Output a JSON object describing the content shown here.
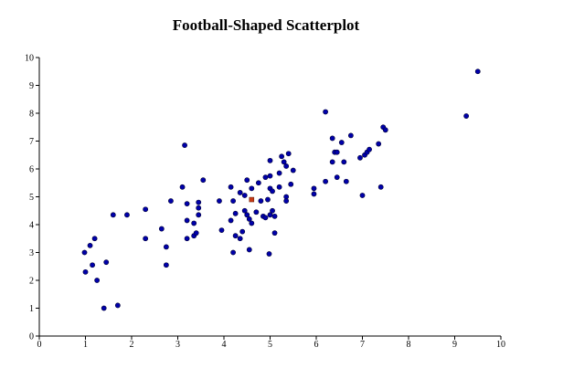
{
  "chart_data": {
    "type": "scatter",
    "title": "Football-Shaped Scatterplot",
    "xlabel": "",
    "ylabel": "",
    "xlim": [
      0,
      10
    ],
    "ylim": [
      0,
      10
    ],
    "xticks": [
      "0",
      "1",
      "2",
      "3",
      "4",
      "5",
      "6",
      "7",
      "8",
      "9",
      "10"
    ],
    "yticks": [
      "0",
      "1",
      "2",
      "3",
      "4",
      "5",
      "6",
      "7",
      "8",
      "9",
      "10"
    ],
    "grid": false,
    "point_color": "#0000aa",
    "point_edge_color": "#000033",
    "highlight_color": "#c83a14",
    "highlight_point": {
      "x": 4.6,
      "y": 4.9
    },
    "points": [
      {
        "x": 0.98,
        "y": 3.0
      },
      {
        "x": 1.1,
        "y": 3.25
      },
      {
        "x": 1.2,
        "y": 3.5
      },
      {
        "x": 1.0,
        "y": 2.3
      },
      {
        "x": 1.15,
        "y": 2.55
      },
      {
        "x": 1.45,
        "y": 2.65
      },
      {
        "x": 1.25,
        "y": 2.0
      },
      {
        "x": 1.4,
        "y": 1.0
      },
      {
        "x": 1.7,
        "y": 1.1
      },
      {
        "x": 1.6,
        "y": 4.35
      },
      {
        "x": 1.9,
        "y": 4.35
      },
      {
        "x": 2.3,
        "y": 4.55
      },
      {
        "x": 2.3,
        "y": 3.5
      },
      {
        "x": 2.65,
        "y": 3.85
      },
      {
        "x": 2.75,
        "y": 3.2
      },
      {
        "x": 2.75,
        "y": 2.55
      },
      {
        "x": 2.85,
        "y": 4.85
      },
      {
        "x": 3.15,
        "y": 6.85
      },
      {
        "x": 3.1,
        "y": 5.35
      },
      {
        "x": 3.2,
        "y": 4.75
      },
      {
        "x": 3.2,
        "y": 4.15
      },
      {
        "x": 3.2,
        "y": 3.5
      },
      {
        "x": 3.35,
        "y": 3.6
      },
      {
        "x": 3.4,
        "y": 3.7
      },
      {
        "x": 3.35,
        "y": 4.05
      },
      {
        "x": 3.45,
        "y": 4.35
      },
      {
        "x": 3.45,
        "y": 4.6
      },
      {
        "x": 3.45,
        "y": 4.8
      },
      {
        "x": 3.55,
        "y": 5.6
      },
      {
        "x": 3.9,
        "y": 4.85
      },
      {
        "x": 3.95,
        "y": 3.8
      },
      {
        "x": 4.15,
        "y": 5.35
      },
      {
        "x": 4.15,
        "y": 4.15
      },
      {
        "x": 4.2,
        "y": 4.85
      },
      {
        "x": 4.25,
        "y": 4.4
      },
      {
        "x": 4.2,
        "y": 3.0
      },
      {
        "x": 4.25,
        "y": 3.6
      },
      {
        "x": 4.35,
        "y": 3.5
      },
      {
        "x": 4.35,
        "y": 5.15
      },
      {
        "x": 4.4,
        "y": 3.75
      },
      {
        "x": 4.45,
        "y": 4.5
      },
      {
        "x": 4.45,
        "y": 5.05
      },
      {
        "x": 4.5,
        "y": 5.6
      },
      {
        "x": 4.5,
        "y": 4.35
      },
      {
        "x": 4.55,
        "y": 4.2
      },
      {
        "x": 4.55,
        "y": 3.1
      },
      {
        "x": 4.6,
        "y": 4.05
      },
      {
        "x": 4.6,
        "y": 5.3
      },
      {
        "x": 4.7,
        "y": 4.45
      },
      {
        "x": 4.75,
        "y": 5.5
      },
      {
        "x": 4.8,
        "y": 4.85
      },
      {
        "x": 4.85,
        "y": 4.3
      },
      {
        "x": 4.9,
        "y": 4.25
      },
      {
        "x": 4.95,
        "y": 4.9
      },
      {
        "x": 4.9,
        "y": 5.7
      },
      {
        "x": 5.0,
        "y": 6.3
      },
      {
        "x": 5.0,
        "y": 5.3
      },
      {
        "x": 5.05,
        "y": 5.2
      },
      {
        "x": 5.0,
        "y": 5.75
      },
      {
        "x": 5.05,
        "y": 4.5
      },
      {
        "x": 5.0,
        "y": 4.35
      },
      {
        "x": 5.1,
        "y": 4.3
      },
      {
        "x": 5.1,
        "y": 3.7
      },
      {
        "x": 4.98,
        "y": 2.95
      },
      {
        "x": 5.2,
        "y": 5.85
      },
      {
        "x": 5.2,
        "y": 5.35
      },
      {
        "x": 5.25,
        "y": 6.45
      },
      {
        "x": 5.3,
        "y": 6.25
      },
      {
        "x": 5.35,
        "y": 6.1
      },
      {
        "x": 5.4,
        "y": 6.55
      },
      {
        "x": 5.35,
        "y": 5.0
      },
      {
        "x": 5.35,
        "y": 4.85
      },
      {
        "x": 5.45,
        "y": 5.45
      },
      {
        "x": 5.5,
        "y": 5.95
      },
      {
        "x": 5.95,
        "y": 5.3
      },
      {
        "x": 5.95,
        "y": 5.1
      },
      {
        "x": 6.2,
        "y": 8.05
      },
      {
        "x": 6.2,
        "y": 5.55
      },
      {
        "x": 6.35,
        "y": 7.1
      },
      {
        "x": 6.35,
        "y": 6.25
      },
      {
        "x": 6.4,
        "y": 6.6
      },
      {
        "x": 6.45,
        "y": 6.6
      },
      {
        "x": 6.45,
        "y": 5.7
      },
      {
        "x": 6.55,
        "y": 6.95
      },
      {
        "x": 6.6,
        "y": 6.25
      },
      {
        "x": 6.65,
        "y": 5.55
      },
      {
        "x": 6.75,
        "y": 7.2
      },
      {
        "x": 6.95,
        "y": 6.4
      },
      {
        "x": 7.05,
        "y": 6.5
      },
      {
        "x": 7.1,
        "y": 6.6
      },
      {
        "x": 7.15,
        "y": 6.7
      },
      {
        "x": 7.0,
        "y": 5.05
      },
      {
        "x": 7.35,
        "y": 6.9
      },
      {
        "x": 7.4,
        "y": 5.35
      },
      {
        "x": 7.45,
        "y": 7.5
      },
      {
        "x": 7.5,
        "y": 7.4
      },
      {
        "x": 9.25,
        "y": 7.9
      },
      {
        "x": 9.5,
        "y": 9.5
      }
    ]
  }
}
